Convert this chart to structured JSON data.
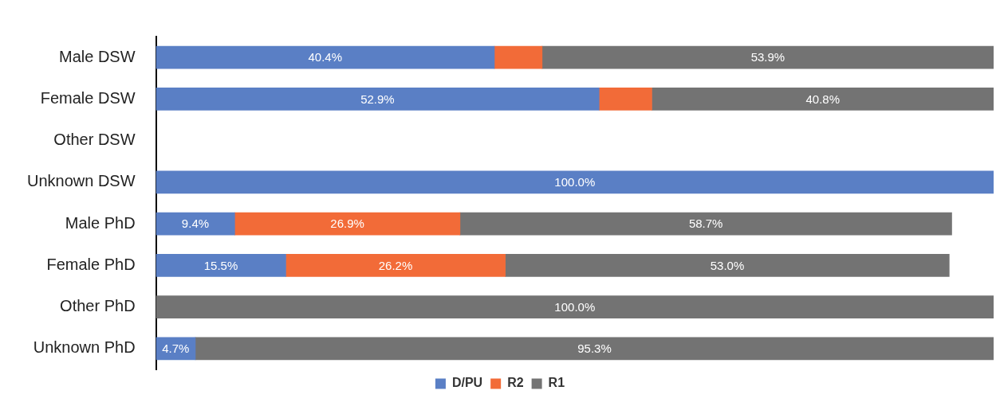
{
  "chart_data": {
    "type": "bar",
    "orientation": "horizontal",
    "stacked": true,
    "categories": [
      "Male DSW",
      "Female DSW",
      "Other DSW",
      "Unknown DSW",
      "Male PhD",
      "Female PhD",
      "Other PhD",
      "Unknown PhD"
    ],
    "series": [
      {
        "name": "D/PU",
        "color": "#5a7fc5",
        "values": [
          40.4,
          52.9,
          null,
          100,
          9.4,
          15.5,
          null,
          4.7
        ],
        "value_labels": [
          "40.4%",
          "52.9%",
          null,
          "100.0%",
          "9.4%",
          "15.5%",
          null,
          "4.7%"
        ]
      },
      {
        "name": "R2",
        "color": "#f26b38",
        "values": [
          5.7,
          6.3,
          null,
          null,
          26.9,
          26.2,
          null,
          null
        ],
        "value_labels": [
          null,
          null,
          null,
          null,
          "26.9%",
          "26.2%",
          null,
          null
        ]
      },
      {
        "name": "R1",
        "color": "#737373",
        "values": [
          53.9,
          40.8,
          null,
          null,
          58.7,
          53.0,
          100,
          95.3
        ],
        "value_labels": [
          "53.9%",
          "40.8%",
          null,
          null,
          "58.7%",
          "53.0%",
          "100.0%",
          "95.3%"
        ]
      }
    ],
    "xlim": [
      0,
      100
    ],
    "tick_labels": "y",
    "legend": "bottom"
  }
}
